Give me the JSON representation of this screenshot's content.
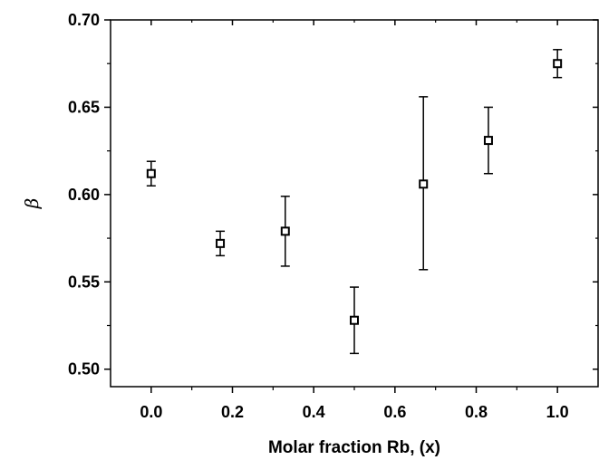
{
  "chart_data": {
    "type": "scatter",
    "title": "",
    "xlabel": "Molar fraction Rb, (x)",
    "ylabel": "β",
    "xlim": [
      -0.1,
      1.1
    ],
    "ylim": [
      0.49,
      0.7
    ],
    "xticks": [
      "0.0",
      "0.2",
      "0.4",
      "0.6",
      "0.8",
      "1.0"
    ],
    "yticks": [
      "0.50",
      "0.55",
      "0.60",
      "0.65",
      "0.70"
    ],
    "grid": false,
    "marker": "square",
    "points": [
      {
        "x": 0.0,
        "y": 0.612,
        "err_low": 0.605,
        "err_high": 0.619
      },
      {
        "x": 0.17,
        "y": 0.572,
        "err_low": 0.565,
        "err_high": 0.579
      },
      {
        "x": 0.33,
        "y": 0.579,
        "err_low": 0.559,
        "err_high": 0.599
      },
      {
        "x": 0.5,
        "y": 0.528,
        "err_low": 0.509,
        "err_high": 0.547
      },
      {
        "x": 0.67,
        "y": 0.606,
        "err_low": 0.557,
        "err_high": 0.656
      },
      {
        "x": 0.83,
        "y": 0.631,
        "err_low": 0.612,
        "err_high": 0.65
      },
      {
        "x": 1.0,
        "y": 0.675,
        "err_low": 0.667,
        "err_high": 0.683
      }
    ]
  }
}
